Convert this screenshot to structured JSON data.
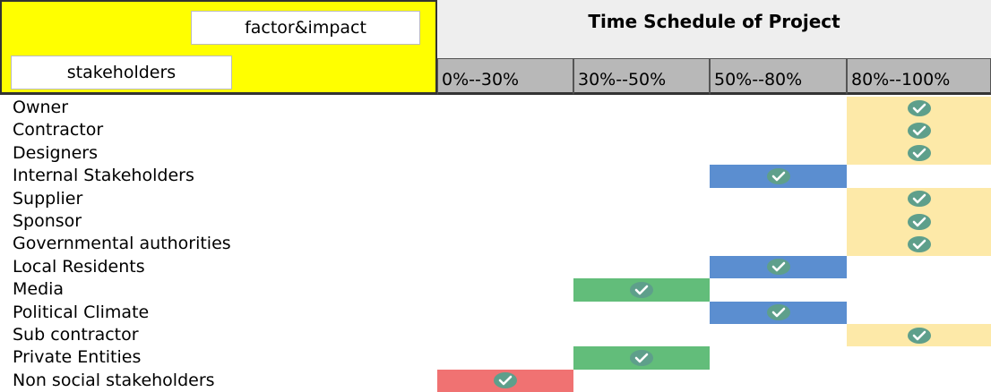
{
  "corner": {
    "top_label": "factor&impact",
    "bottom_label": "stakeholders"
  },
  "title": "Time Schedule of Project",
  "columns": [
    {
      "label": "0%--30%",
      "color": "#f07272"
    },
    {
      "label": "30%--50%",
      "color": "#62bd7a"
    },
    {
      "label": "50%--80%",
      "color": "#5b8ed0"
    },
    {
      "label": "80%--100%",
      "color": "#fde9a8"
    }
  ],
  "rows": [
    {
      "name": "Owner",
      "cells": [
        false,
        false,
        false,
        true
      ]
    },
    {
      "name": "Contractor",
      "cells": [
        false,
        false,
        false,
        true
      ]
    },
    {
      "name": "Designers",
      "cells": [
        false,
        false,
        false,
        true
      ]
    },
    {
      "name": "Internal Stakeholders",
      "cells": [
        false,
        false,
        true,
        false
      ]
    },
    {
      "name": "Supplier",
      "cells": [
        false,
        false,
        false,
        true
      ]
    },
    {
      "name": "Sponsor",
      "cells": [
        false,
        false,
        false,
        true
      ]
    },
    {
      "name": "Governmental authorities",
      "cells": [
        false,
        false,
        false,
        true
      ]
    },
    {
      "name": "Local Residents",
      "cells": [
        false,
        false,
        true,
        false
      ]
    },
    {
      "name": "Media",
      "cells": [
        false,
        true,
        false,
        false
      ]
    },
    {
      "name": "Political Climate",
      "cells": [
        false,
        false,
        true,
        false
      ]
    },
    {
      "name": "Sub contractor",
      "cells": [
        false,
        false,
        false,
        true
      ]
    },
    {
      "name": "Private Entities",
      "cells": [
        false,
        true,
        false,
        false
      ]
    },
    {
      "name": "Non social stakeholders",
      "cells": [
        true,
        false,
        false,
        false
      ]
    }
  ]
}
